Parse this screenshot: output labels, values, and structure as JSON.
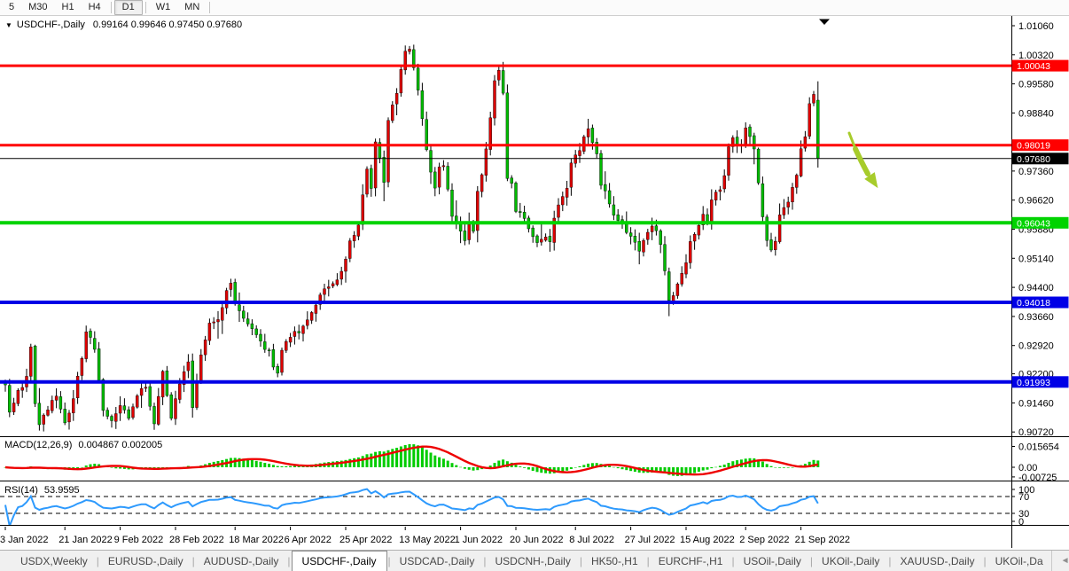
{
  "toolbar": {
    "timeframes": [
      {
        "label": "5",
        "active": false
      },
      {
        "label": "M30",
        "active": false
      },
      {
        "label": "H1",
        "active": false
      },
      {
        "label": "H4",
        "active": false
      },
      {
        "label": "D1",
        "active": true
      },
      {
        "label": "W1",
        "active": false
      },
      {
        "label": "MN",
        "active": false
      }
    ]
  },
  "chart_data": {
    "type": "candlestick",
    "symbol": "USDCHF",
    "period": "Daily",
    "title": {
      "symbol": "USDCHF-,Daily",
      "ohlc_text": "0.99164 0.99646 0.97450 0.97680"
    },
    "current_bar": {
      "open": 0.99164,
      "high": 0.99646,
      "low": 0.9745,
      "close": 0.9768
    },
    "bar_count": 192,
    "colors": {
      "bull": "#dd0000",
      "bear": "#00bb00",
      "wick": "#000000",
      "arrow": "#a7cc2b",
      "axis_text": "#000000"
    },
    "y_axis": {
      "ticks": [
        {
          "label": "1.01060",
          "value": 1.0106
        },
        {
          "label": "1.00320",
          "value": 1.0032
        },
        {
          "label": "0.99580",
          "value": 0.9958
        },
        {
          "label": "0.98840",
          "value": 0.9884
        },
        {
          "label": "0.97360",
          "value": 0.9736
        },
        {
          "label": "0.96620",
          "value": 0.9662
        },
        {
          "label": "0.95880",
          "value": 0.9588
        },
        {
          "label": "0.95140",
          "value": 0.9514
        },
        {
          "label": "0.94400",
          "value": 0.944
        },
        {
          "label": "0.93660",
          "value": 0.9366
        },
        {
          "label": "0.92920",
          "value": 0.9292
        },
        {
          "label": "0.92200",
          "value": 0.922
        },
        {
          "label": "0.91460",
          "value": 0.9146
        },
        {
          "label": "0.90720",
          "value": 0.9072
        }
      ]
    },
    "x_axis": {
      "ticks": [
        {
          "label": "3 Jan 2022",
          "index": 0
        },
        {
          "label": "21 Jan 2022",
          "index": 14
        },
        {
          "label": "9 Feb 2022",
          "index": 27
        },
        {
          "label": "28 Feb 2022",
          "index": 40
        },
        {
          "label": "18 Mar 2022",
          "index": 54
        },
        {
          "label": "6 Apr 2022",
          "index": 67
        },
        {
          "label": "25 Apr 2022",
          "index": 80
        },
        {
          "label": "13 May 2022",
          "index": 94
        },
        {
          "label": "1 Jun 2022",
          "index": 107
        },
        {
          "label": "20 Jun 2022",
          "index": 120
        },
        {
          "label": "8 Jul 2022",
          "index": 134
        },
        {
          "label": "27 Jul 2022",
          "index": 147
        },
        {
          "label": "15 Aug 2022",
          "index": 160
        },
        {
          "label": "2 Sep 2022",
          "index": 174
        },
        {
          "label": "21 Sep 2022",
          "index": 187
        }
      ]
    },
    "hlines": [
      {
        "price": 1.00043,
        "label": "1.00043",
        "color": "#ff0000",
        "thickness": 3
      },
      {
        "price": 0.98019,
        "label": "0.98019",
        "color": "#ff0000",
        "thickness": 3
      },
      {
        "price": 0.9768,
        "label": "0.97680",
        "color": "#000000",
        "thickness": 1
      },
      {
        "price": 0.96043,
        "label": "0.96043",
        "color": "#00d300",
        "thickness": 4
      },
      {
        "price": 0.94018,
        "label": "0.94018",
        "color": "#0000e6",
        "thickness": 4
      },
      {
        "price": 0.91993,
        "label": "0.91993",
        "color": "#0000e6",
        "thickness": 4
      }
    ],
    "price_anchors": [
      [
        0,
        0.9185
      ],
      [
        1,
        0.9115
      ],
      [
        3,
        0.917
      ],
      [
        5,
        0.921
      ],
      [
        6,
        0.9285
      ],
      [
        7,
        0.915
      ],
      [
        8,
        0.9085
      ],
      [
        10,
        0.9135
      ],
      [
        12,
        0.917
      ],
      [
        14,
        0.9095
      ],
      [
        16,
        0.915
      ],
      [
        19,
        0.932
      ],
      [
        21,
        0.929
      ],
      [
        23,
        0.913
      ],
      [
        25,
        0.9095
      ],
      [
        27,
        0.914
      ],
      [
        29,
        0.911
      ],
      [
        31,
        0.917
      ],
      [
        33,
        0.9185
      ],
      [
        35,
        0.9095
      ],
      [
        37,
        0.9225
      ],
      [
        39,
        0.911
      ],
      [
        41,
        0.92
      ],
      [
        43,
        0.9255
      ],
      [
        44,
        0.914
      ],
      [
        46,
        0.9265
      ],
      [
        48,
        0.9345
      ],
      [
        50,
        0.9365
      ],
      [
        52,
        0.9425
      ],
      [
        53,
        0.9455
      ],
      [
        54,
        0.939
      ],
      [
        56,
        0.9355
      ],
      [
        58,
        0.933
      ],
      [
        60,
        0.93
      ],
      [
        62,
        0.9275
      ],
      [
        64,
        0.9215
      ],
      [
        65,
        0.9285
      ],
      [
        67,
        0.931
      ],
      [
        69,
        0.933
      ],
      [
        71,
        0.936
      ],
      [
        73,
        0.94
      ],
      [
        75,
        0.943
      ],
      [
        77,
        0.945
      ],
      [
        79,
        0.948
      ],
      [
        81,
        0.9555
      ],
      [
        83,
        0.96
      ],
      [
        84,
        0.9672
      ],
      [
        85,
        0.9745
      ],
      [
        86,
        0.97
      ],
      [
        87,
        0.981
      ],
      [
        89,
        0.9713
      ],
      [
        90,
        0.987
      ],
      [
        92,
        0.993
      ],
      [
        93,
        0.999
      ],
      [
        94,
        1.0035
      ],
      [
        95,
        1.005
      ],
      [
        96,
        1.0
      ],
      [
        97,
        0.994
      ],
      [
        98,
        0.987
      ],
      [
        99,
        0.979
      ],
      [
        100,
        0.973
      ],
      [
        101,
        0.969
      ],
      [
        102,
        0.974
      ],
      [
        103,
        0.975
      ],
      [
        104,
        0.969
      ],
      [
        105,
        0.962
      ],
      [
        107,
        0.9575
      ],
      [
        108,
        0.956
      ],
      [
        109,
        0.9605
      ],
      [
        110,
        0.9575
      ],
      [
        111,
        0.969
      ],
      [
        112,
        0.972
      ],
      [
        113,
        0.98
      ],
      [
        114,
        0.987
      ],
      [
        115,
        0.996
      ],
      [
        116,
        1.0
      ],
      [
        117,
        0.994
      ],
      [
        118,
        0.972
      ],
      [
        119,
        0.97
      ],
      [
        120,
        0.964
      ],
      [
        122,
        0.961
      ],
      [
        123,
        0.959
      ],
      [
        124,
        0.957
      ],
      [
        125,
        0.955
      ],
      [
        127,
        0.957
      ],
      [
        128,
        0.9555
      ],
      [
        129,
        0.961
      ],
      [
        130,
        0.965
      ],
      [
        132,
        0.969
      ],
      [
        133,
        0.975
      ],
      [
        135,
        0.979
      ],
      [
        136,
        0.982
      ],
      [
        137,
        0.984
      ],
      [
        138,
        0.9815
      ],
      [
        139,
        0.978
      ],
      [
        140,
        0.97
      ],
      [
        142,
        0.966
      ],
      [
        143,
        0.963
      ],
      [
        144,
        0.961
      ],
      [
        145,
        0.96
      ],
      [
        147,
        0.957
      ],
      [
        148,
        0.956
      ],
      [
        149,
        0.953
      ],
      [
        150,
        0.956
      ],
      [
        152,
        0.96
      ],
      [
        153,
        0.958
      ],
      [
        154,
        0.9545
      ],
      [
        155,
        0.948
      ],
      [
        156,
        0.94
      ],
      [
        157,
        0.942
      ],
      [
        158,
        0.945
      ],
      [
        159,
        0.947
      ],
      [
        160,
        0.95
      ],
      [
        161,
        0.955
      ],
      [
        162,
        0.958
      ],
      [
        163,
        0.96
      ],
      [
        164,
        0.962
      ],
      [
        165,
        0.96
      ],
      [
        166,
        0.966
      ],
      [
        168,
        0.969
      ],
      [
        169,
        0.973
      ],
      [
        170,
        0.979
      ],
      [
        171,
        0.9818
      ],
      [
        173,
        0.98
      ],
      [
        174,
        0.984
      ],
      [
        175,
        0.982
      ],
      [
        176,
        0.979
      ],
      [
        177,
        0.97
      ],
      [
        178,
        0.962
      ],
      [
        179,
        0.956
      ],
      [
        180,
        0.953
      ],
      [
        181,
        0.956
      ],
      [
        182,
        0.962
      ],
      [
        183,
        0.964
      ],
      [
        184,
        0.965
      ],
      [
        185,
        0.97
      ],
      [
        186,
        0.973
      ],
      [
        187,
        0.979
      ],
      [
        188,
        0.983
      ],
      [
        189,
        0.99
      ],
      [
        190,
        0.9928
      ],
      [
        191,
        0.9768
      ]
    ],
    "annotations": {
      "arrow": {
        "color": "#a7cc2b",
        "direction": "down-right"
      },
      "top_marker": "black-down-triangle"
    },
    "indicators": {
      "macd": {
        "label": "MACD(12,26,9)",
        "values_text": "0.004867 0.002005",
        "macd_value": 0.004867,
        "signal_value": 0.002005,
        "axis_labels": [
          {
            "label": "0.015654",
            "value": 0.015654
          },
          {
            "label": "0.00",
            "value": 0
          },
          {
            "label": "-0.00725",
            "value": -0.00725
          }
        ],
        "histogram_color": "#00cc00",
        "signal_color": "#ee0000"
      },
      "rsi": {
        "label": "RSI(14)",
        "values_text": "53.9595",
        "value": 53.9595,
        "axis_labels": [
          {
            "label": "100",
            "value": 100
          },
          {
            "label": "70",
            "value": 70
          },
          {
            "label": "30",
            "value": 30
          },
          {
            "label": "0",
            "value": 0
          }
        ],
        "levels": [
          70,
          30
        ],
        "line_color": "#2e9afd"
      }
    }
  },
  "tabs": {
    "items": [
      {
        "label": "USDX,Weekly",
        "active": false
      },
      {
        "label": "EURUSD-,Daily",
        "active": false
      },
      {
        "label": "AUDUSD-,Daily",
        "active": false
      },
      {
        "label": "USDCHF-,Daily",
        "active": true
      },
      {
        "label": "USDCAD-,Daily",
        "active": false
      },
      {
        "label": "USDCNH-,Daily",
        "active": false
      },
      {
        "label": "HK50-,H1",
        "active": false
      },
      {
        "label": "EURCHF-,H1",
        "active": false
      },
      {
        "label": "USOil-,Daily",
        "active": false
      },
      {
        "label": "UKOil-,Daily",
        "active": false
      },
      {
        "label": "XAUUSD-,Daily",
        "active": false
      },
      {
        "label": "UKOil-,Da",
        "active": false
      }
    ],
    "nav": {
      "left": "◄",
      "right": "►"
    }
  }
}
